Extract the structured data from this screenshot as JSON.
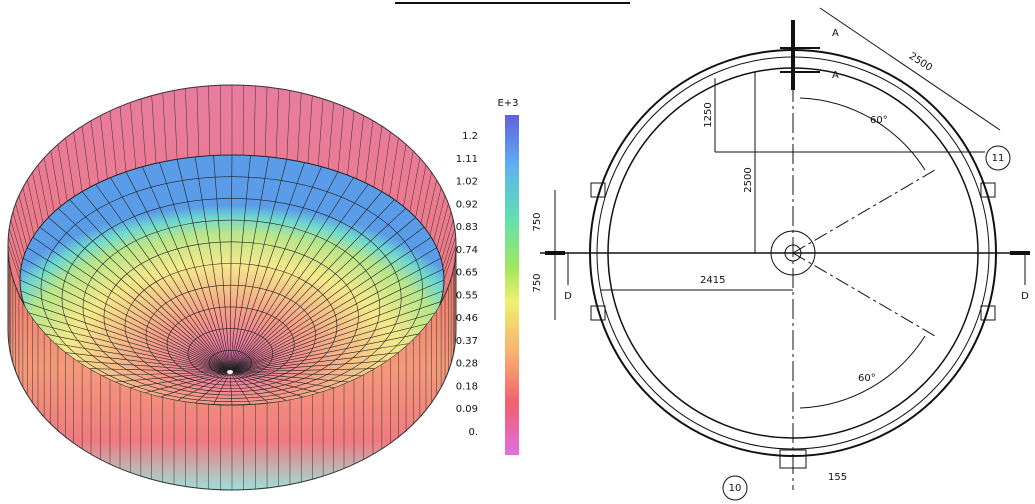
{
  "colorbar": {
    "exponent": "E+3",
    "labels": [
      "1.2",
      "1.11",
      "1.02",
      "0.92",
      "0.83",
      "0.74",
      "0.65",
      "0.55",
      "0.46",
      "0.37",
      "0.28",
      "0.18",
      "0.09",
      "0."
    ]
  },
  "drawing": {
    "section_top_1": "A",
    "section_top_2": "A",
    "dim_diagonal": "2500",
    "dim_1250": "1250",
    "angle_top": "60°",
    "dim_2500": "2500",
    "callout_11": "11",
    "dim_750_top": "750",
    "dim_750_bottom": "750",
    "section_left": "D",
    "section_right": "D",
    "dim_2415": "2415",
    "angle_bottom": "60°",
    "callout_10": "10",
    "dim_155": "155"
  }
}
